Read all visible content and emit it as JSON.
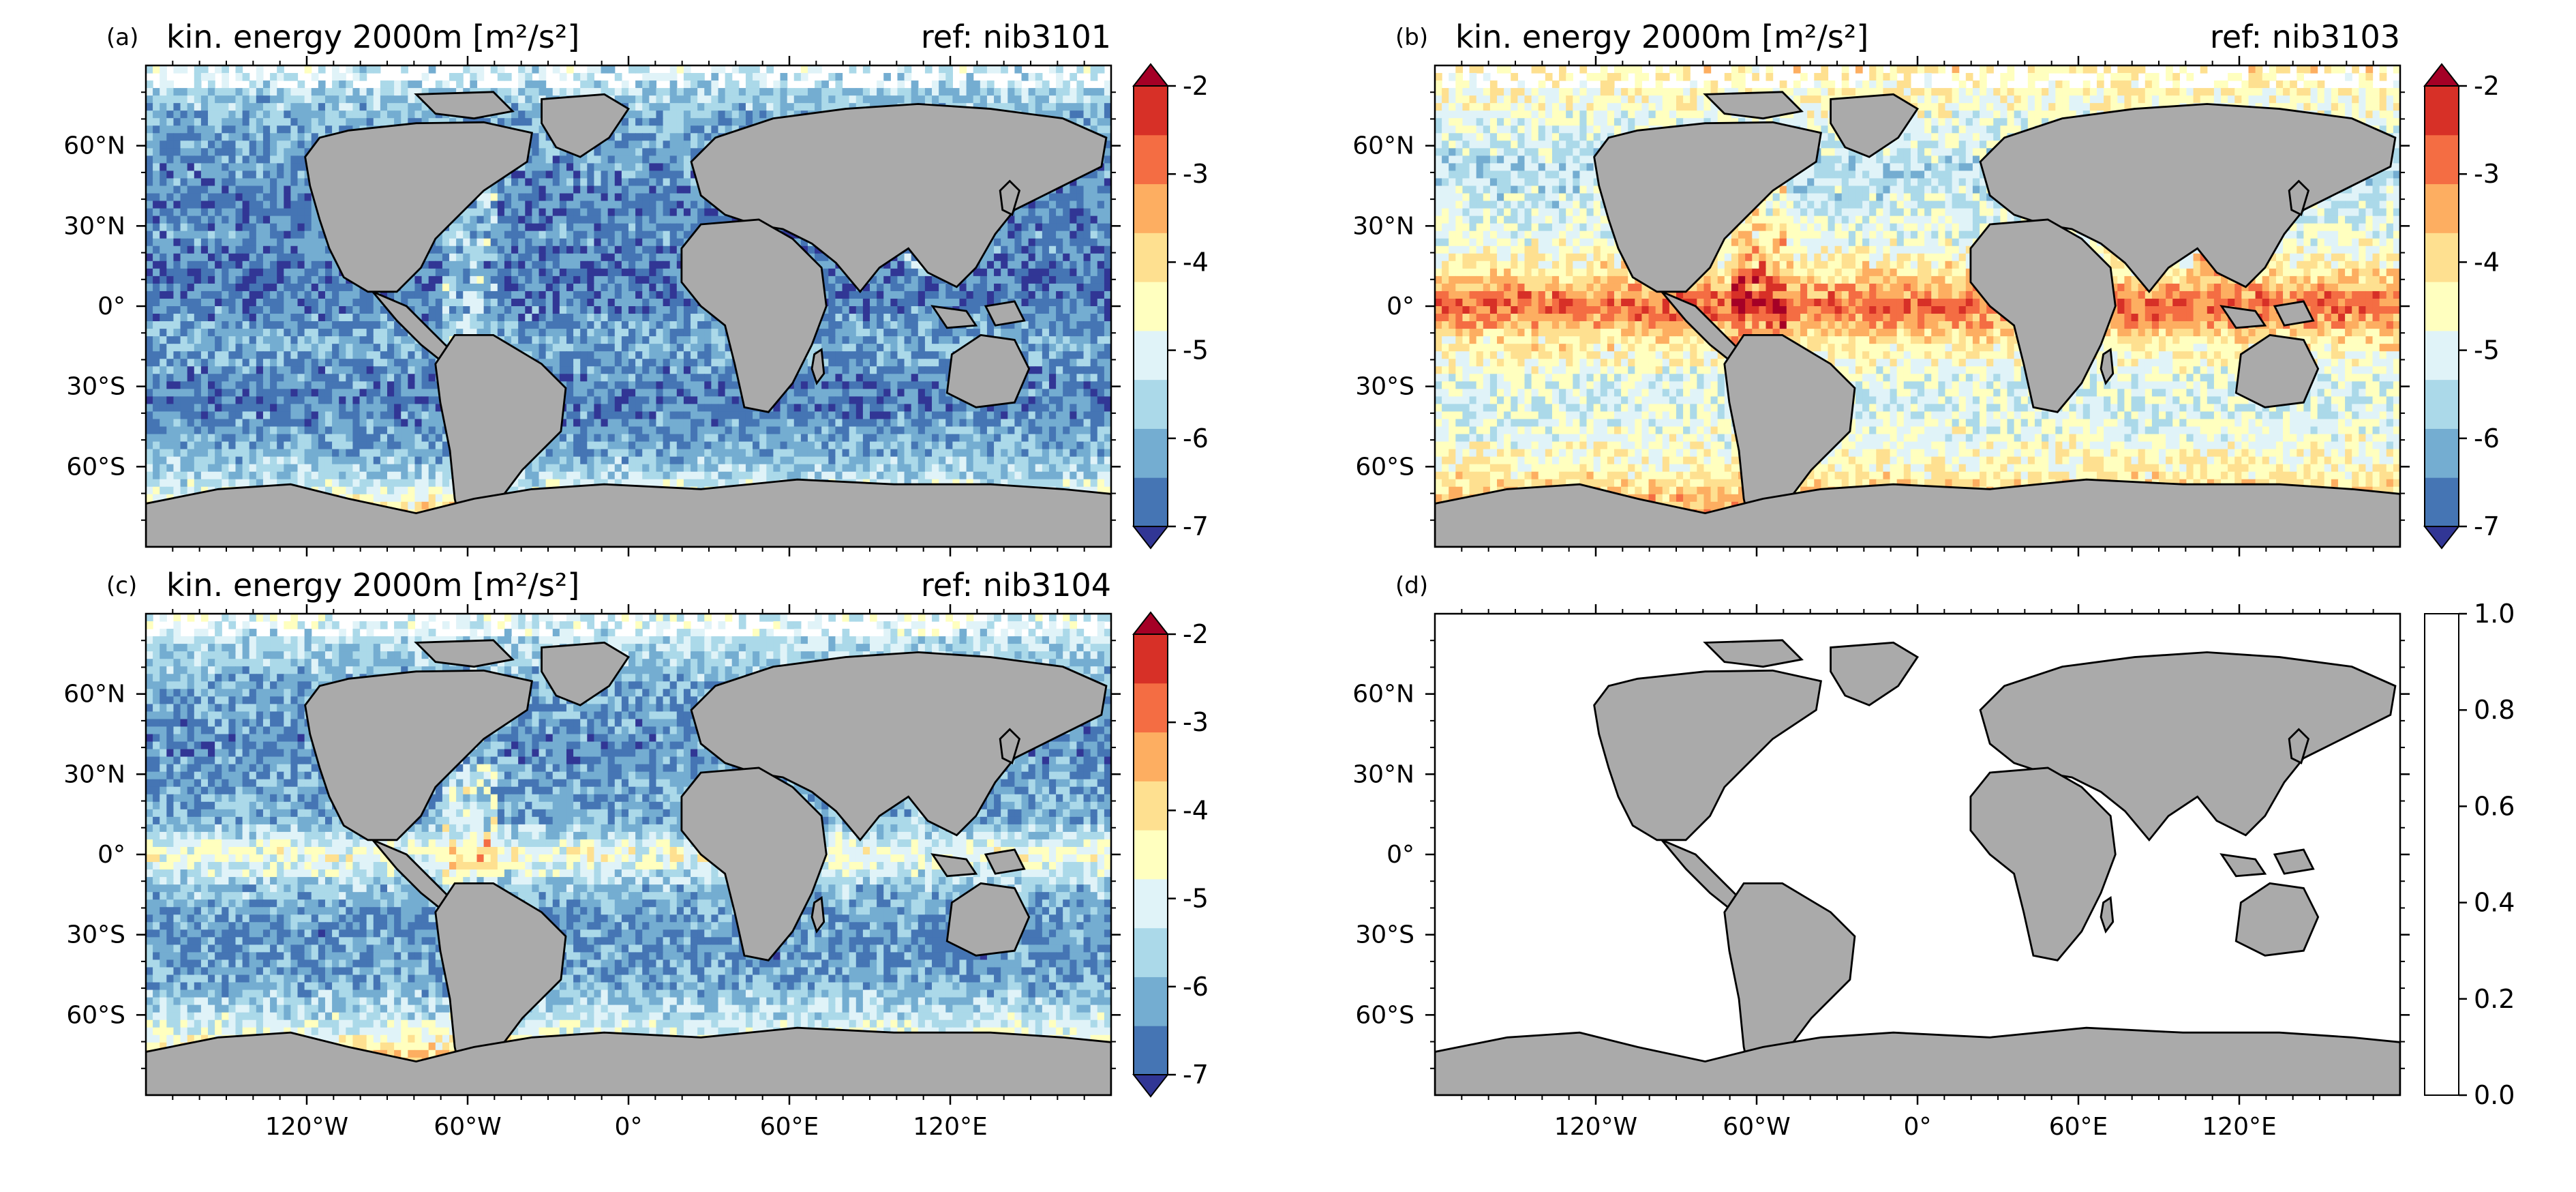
{
  "chart_data": {
    "type": "heatmap",
    "shared_axes": {
      "x_ticks": [
        {
          "value": -120,
          "label": "120°W"
        },
        {
          "value": -60,
          "label": "60°W"
        },
        {
          "value": 0,
          "label": "0°"
        },
        {
          "value": 60,
          "label": "60°E"
        },
        {
          "value": 120,
          "label": "120°E"
        }
      ],
      "y_ticks": [
        {
          "value": 60,
          "label": "60°N"
        },
        {
          "value": 30,
          "label": "30°N"
        },
        {
          "value": 0,
          "label": "0°"
        },
        {
          "value": -30,
          "label": "30°S"
        },
        {
          "value": -60,
          "label": "60°S"
        }
      ],
      "xlim": [
        -180,
        180
      ],
      "ylim": [
        -90,
        90
      ]
    },
    "panels": [
      {
        "tag": "(a)",
        "title": "kin. energy 2000m [m²/s²]",
        "ref": "ref: nib3101",
        "colorbar": {
          "ticks": [
            "-2",
            "-3",
            "-4",
            "-5",
            "-6",
            "-7"
          ],
          "range": [
            -7,
            -2
          ],
          "extend": "both"
        },
        "field_profile": [
          -5.2,
          -5.6,
          -5.9,
          -6.1,
          -6.2,
          -6.1,
          -6.3,
          -6.2,
          -5.8,
          -6.1,
          -6.2,
          -5.9,
          -5.4,
          -4.2,
          -3.6
        ]
      },
      {
        "tag": "(b)",
        "title": "kin. energy 2000m [m²/s²]",
        "ref": "ref: nib3103",
        "colorbar": {
          "ticks": [
            "-2",
            "-3",
            "-4",
            "-5",
            "-6",
            "-7"
          ],
          "range": [
            -7,
            -2
          ],
          "extend": "both"
        },
        "field_profile": [
          -4.2,
          -4.6,
          -5.0,
          -5.3,
          -5.1,
          -4.8,
          -4.2,
          -3.0,
          -4.2,
          -4.8,
          -5.0,
          -4.7,
          -4.3,
          -3.6,
          -3.2
        ]
      },
      {
        "tag": "(c)",
        "title": "kin. energy 2000m [m²/s²]",
        "ref": "ref: nib3104",
        "colorbar": {
          "ticks": [
            "-2",
            "-3",
            "-4",
            "-5",
            "-6",
            "-7"
          ],
          "range": [
            -7,
            -2
          ],
          "extend": "both"
        },
        "field_profile": [
          -5.0,
          -5.4,
          -5.8,
          -6.0,
          -6.1,
          -5.9,
          -5.8,
          -4.6,
          -5.6,
          -6.0,
          -6.0,
          -5.7,
          -5.1,
          -3.8,
          -3.3
        ]
      },
      {
        "tag": "(d)",
        "title": "",
        "ref": "",
        "colorbar": {
          "ticks": [
            "1.0",
            "0.8",
            "0.6",
            "0.4",
            "0.2",
            "0.0"
          ],
          "range": [
            0,
            1
          ],
          "extend": "neither"
        },
        "field_profile": []
      }
    ],
    "colors": {
      "land": "#aaaaaa",
      "ocean_missing": "#ffffff",
      "palette": [
        "#313695",
        "#4575b4",
        "#74add1",
        "#abd9e9",
        "#e0f3f8",
        "#ffffbf",
        "#fee090",
        "#fdae61",
        "#f46d43",
        "#d73027",
        "#a50026"
      ]
    }
  }
}
